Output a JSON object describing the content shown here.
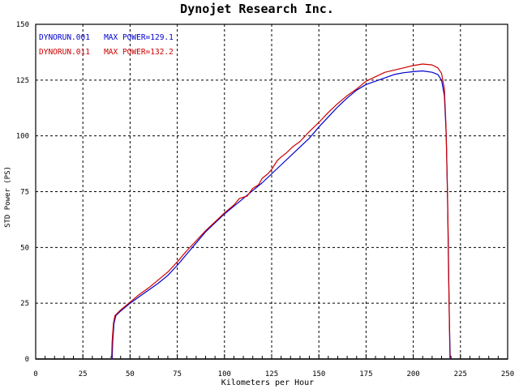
{
  "chart_data": {
    "type": "line",
    "title": "Dynojet  Research  Inc.",
    "xlabel": "Kilometers per Hour",
    "ylabel": "STD Power (PS)",
    "xlim": [
      0,
      250
    ],
    "ylim": [
      0,
      150
    ],
    "x_ticks": [
      "0",
      "25",
      "50",
      "75",
      "100",
      "125",
      "150",
      "175",
      "200",
      "225",
      "250"
    ],
    "y_ticks": [
      "0",
      "25",
      "50",
      "75",
      "100",
      "125",
      "150"
    ],
    "grid": true,
    "legend_position": "top-left",
    "series": [
      {
        "name": "DYNORUN.001",
        "legend_text": "DYNORUN.001   MAX POWER=129.1",
        "color": "#0000cc",
        "points": [
          [
            40.5,
            0
          ],
          [
            40.8,
            8
          ],
          [
            41.5,
            16
          ],
          [
            42.5,
            19.5
          ],
          [
            45,
            21.5
          ],
          [
            50,
            25
          ],
          [
            55,
            28
          ],
          [
            60,
            31
          ],
          [
            65,
            34
          ],
          [
            70,
            37.5
          ],
          [
            75,
            42
          ],
          [
            80,
            47
          ],
          [
            85,
            52
          ],
          [
            90,
            57
          ],
          [
            95,
            61
          ],
          [
            100,
            65
          ],
          [
            105,
            68.5
          ],
          [
            110,
            72
          ],
          [
            115,
            75.5
          ],
          [
            120,
            79
          ],
          [
            125,
            83
          ],
          [
            130,
            87
          ],
          [
            135,
            91
          ],
          [
            140,
            95
          ],
          [
            145,
            99
          ],
          [
            150,
            104
          ],
          [
            155,
            108.5
          ],
          [
            160,
            113
          ],
          [
            165,
            117
          ],
          [
            170,
            120.5
          ],
          [
            175,
            123
          ],
          [
            180,
            124.5
          ],
          [
            185,
            126
          ],
          [
            190,
            127.5
          ],
          [
            195,
            128.3
          ],
          [
            200,
            128.8
          ],
          [
            205,
            129.1
          ],
          [
            210,
            128.5
          ],
          [
            213,
            127.5
          ],
          [
            215,
            125
          ],
          [
            216.5,
            118
          ],
          [
            217.5,
            100
          ],
          [
            218.2,
            70
          ],
          [
            218.7,
            40
          ],
          [
            219.2,
            15
          ],
          [
            219.6,
            0
          ]
        ]
      },
      {
        "name": "DYNORUN.011",
        "legend_text": "DYNORUN.011   MAX POWER=132.2",
        "color": "#cc0000",
        "points": [
          [
            40.2,
            0
          ],
          [
            40.5,
            8
          ],
          [
            41.2,
            16
          ],
          [
            42,
            19.5
          ],
          [
            45,
            22
          ],
          [
            50,
            25.5
          ],
          [
            55,
            29
          ],
          [
            60,
            32
          ],
          [
            65,
            35.5
          ],
          [
            70,
            39
          ],
          [
            75,
            43.5
          ],
          [
            80,
            48.5
          ],
          [
            85,
            53
          ],
          [
            90,
            57.5
          ],
          [
            95,
            61.5
          ],
          [
            100,
            65.5
          ],
          [
            105,
            69
          ],
          [
            108,
            72
          ],
          [
            112,
            73
          ],
          [
            115,
            76.5
          ],
          [
            118,
            78
          ],
          [
            120,
            81
          ],
          [
            123,
            83
          ],
          [
            125,
            85
          ],
          [
            128,
            89
          ],
          [
            130,
            90.5
          ],
          [
            133,
            92.5
          ],
          [
            136,
            95
          ],
          [
            140,
            97.5
          ],
          [
            145,
            102
          ],
          [
            150,
            106
          ],
          [
            155,
            110.5
          ],
          [
            160,
            114.5
          ],
          [
            165,
            118
          ],
          [
            170,
            121
          ],
          [
            175,
            124.5
          ],
          [
            180,
            126.5
          ],
          [
            185,
            128.5
          ],
          [
            190,
            129.5
          ],
          [
            195,
            130.5
          ],
          [
            200,
            131.5
          ],
          [
            205,
            132.2
          ],
          [
            210,
            131.8
          ],
          [
            213,
            130.5
          ],
          [
            215,
            128
          ],
          [
            216.5,
            121
          ],
          [
            217.3,
            105
          ],
          [
            218,
            80
          ],
          [
            218.5,
            55
          ],
          [
            219,
            25
          ],
          [
            219.4,
            0
          ]
        ]
      }
    ]
  }
}
